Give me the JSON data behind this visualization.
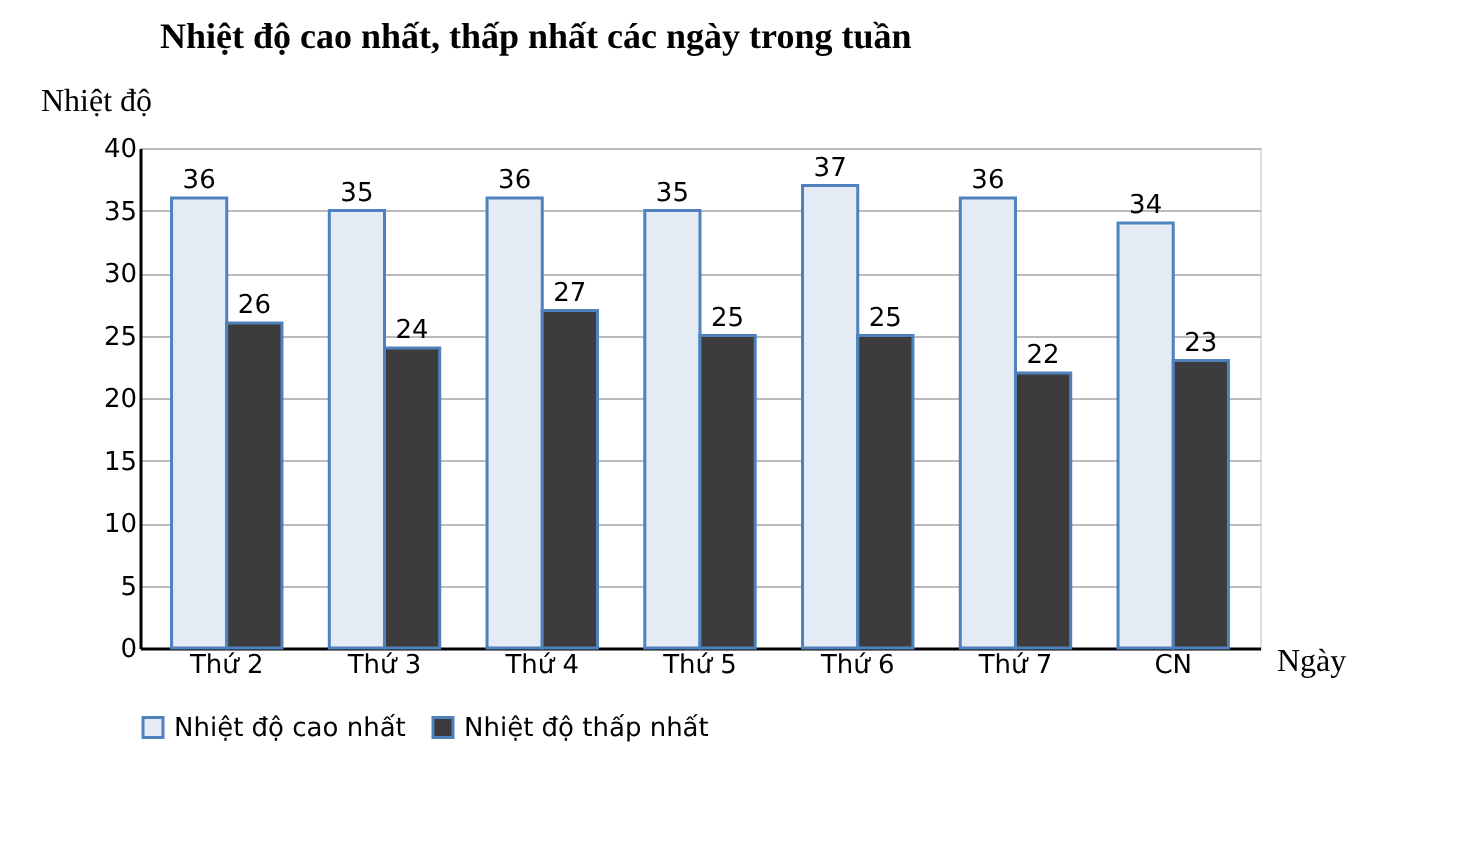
{
  "chart_data": {
    "type": "bar",
    "title": "Nhiệt độ cao nhất, thấp nhất các ngày trong tuần",
    "ylabel": "Nhiệt độ",
    "xlabel": "Ngày",
    "categories": [
      "Thứ 2",
      "Thứ 3",
      "Thứ 4",
      "Thứ 5",
      "Thứ 6",
      "Thứ 7",
      "CN"
    ],
    "series": [
      {
        "name": "Nhiệt độ cao nhất",
        "color": "#e4ebf5",
        "values": [
          36,
          35,
          36,
          35,
          37,
          36,
          34
        ]
      },
      {
        "name": "Nhiệt độ thấp nhất",
        "color": "#3c3c3c",
        "values": [
          26,
          24,
          27,
          25,
          25,
          22,
          23
        ]
      }
    ],
    "ylim": [
      0,
      40
    ],
    "yticks": [
      0,
      5,
      10,
      15,
      20,
      25,
      30,
      35,
      40
    ],
    "grid": "y",
    "legend": "bottom",
    "data_labels": true
  }
}
